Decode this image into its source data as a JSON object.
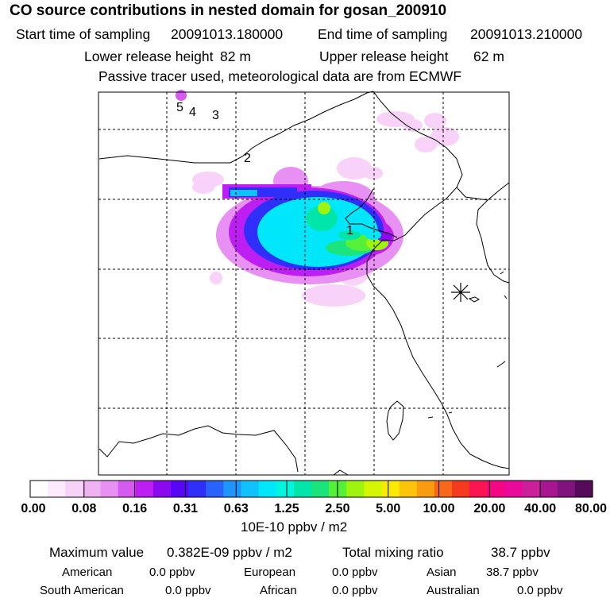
{
  "header": {
    "title": "CO  source contributions in nested domain for gosan_200910",
    "start_label": "Start time of sampling",
    "start_value": "20091013.180000",
    "end_label": "End time of sampling",
    "end_value": "20091013.210000",
    "lower_label": "Lower release height",
    "lower_value": "82 m",
    "upper_label": "Upper release height",
    "upper_value": "62 m",
    "tracer_note": "Passive tracer used, meteorological data are from ECMWF"
  },
  "colors": {
    "background": "#ffffff",
    "line": "#000000",
    "scale": [
      "#ffffff",
      "#fdeafd",
      "#f8d2f8",
      "#efb3f4",
      "#e890f4",
      "#d65af0",
      "#bd1ff3",
      "#8a09ee",
      "#5707f5",
      "#2f2ff9",
      "#2a63fb",
      "#1d95fb",
      "#0fc2fb",
      "#00e7fb",
      "#00f5df",
      "#00e5aa",
      "#1be47d",
      "#56f038",
      "#9ef40e",
      "#d4f503",
      "#fae902",
      "#fdc509",
      "#fa9c10",
      "#f96818",
      "#f53a1f",
      "#fa1451",
      "#f40685",
      "#e90a9c",
      "#cc1f9a",
      "#a71690",
      "#80137e",
      "#550a5a"
    ]
  },
  "chart_data": {
    "type": "heatmap",
    "title": "CO  source contributions in nested domain for gosan_200910",
    "colorbar": {
      "tick_labels": [
        "0.00",
        "0.08",
        "0.16",
        "0.31",
        "0.63",
        "1.25",
        "2.50",
        "5.00",
        "10.00",
        "20.00",
        "40.00",
        "80.00"
      ],
      "unit": "10E-10 ppbv / m2"
    },
    "trajectory_labels": [
      "5",
      "4",
      "3",
      "2",
      "1"
    ],
    "receptor_marker": "receptor-site"
  },
  "summary": {
    "max_label": "Maximum value",
    "max_value": "0.382E-09 ppbv / m2",
    "tmr_label": "Total mixing ratio",
    "tmr_value": "38.7 ppbv",
    "contributions": [
      {
        "label": "American",
        "value": "0.0 ppbv"
      },
      {
        "label": "European",
        "value": "0.0 ppbv"
      },
      {
        "label": "Asian",
        "value": "38.7 ppbv"
      },
      {
        "label": "South American",
        "value": "0.0 ppbv"
      },
      {
        "label": "African",
        "value": "0.0 ppbv"
      },
      {
        "label": "Australian",
        "value": "0.0 ppbv"
      }
    ]
  }
}
